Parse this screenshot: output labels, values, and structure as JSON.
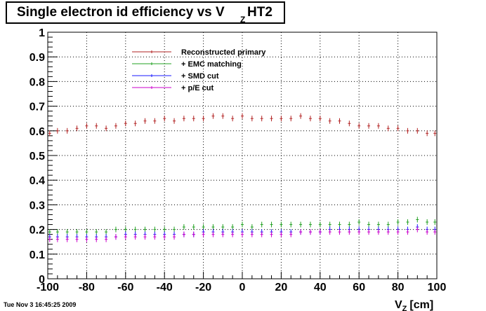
{
  "chart_data": {
    "type": "scatter",
    "title_main": "Single electron id efficiency vs V",
    "title_sub": "Z",
    "title_end": "HT2",
    "xlabel_main": "V",
    "xlabel_sub": "Z",
    "xlabel_end": "[cm]",
    "xlim": [
      -100,
      100
    ],
    "ylim": [
      0,
      1
    ],
    "x_ticks": [
      -100,
      -80,
      -60,
      -40,
      -20,
      0,
      20,
      40,
      60,
      80,
      100
    ],
    "y_ticks": [
      0,
      0.1,
      0.2,
      0.3,
      0.4,
      0.5,
      0.6,
      0.7,
      0.8,
      0.9,
      1
    ],
    "grid": true,
    "error_bars": true,
    "legend_position": "top-center",
    "series": [
      {
        "name": "Reconstructed primary",
        "color": "#b22222",
        "x": [
          -99,
          -95,
          -90,
          -85,
          -80,
          -75,
          -70,
          -65,
          -60,
          -55,
          -50,
          -45,
          -40,
          -35,
          -30,
          -25,
          -20,
          -15,
          -10,
          -5,
          0,
          5,
          10,
          15,
          20,
          25,
          30,
          35,
          40,
          45,
          50,
          55,
          60,
          65,
          70,
          75,
          80,
          85,
          90,
          95,
          99
        ],
        "y": [
          0.59,
          0.6,
          0.6,
          0.61,
          0.62,
          0.62,
          0.61,
          0.62,
          0.63,
          0.63,
          0.64,
          0.64,
          0.65,
          0.64,
          0.65,
          0.65,
          0.65,
          0.66,
          0.66,
          0.65,
          0.66,
          0.65,
          0.65,
          0.65,
          0.65,
          0.65,
          0.66,
          0.65,
          0.65,
          0.64,
          0.64,
          0.63,
          0.62,
          0.62,
          0.62,
          0.61,
          0.61,
          0.6,
          0.6,
          0.59,
          0.59
        ]
      },
      {
        "name": "+ EMC matching",
        "color": "#22a022",
        "x": [
          -99,
          -95,
          -90,
          -85,
          -80,
          -75,
          -70,
          -65,
          -60,
          -55,
          -50,
          -45,
          -40,
          -35,
          -30,
          -25,
          -20,
          -15,
          -10,
          -5,
          0,
          5,
          10,
          15,
          20,
          25,
          30,
          35,
          40,
          45,
          50,
          55,
          60,
          65,
          70,
          75,
          80,
          85,
          90,
          95,
          99
        ],
        "y": [
          0.19,
          0.19,
          0.19,
          0.19,
          0.19,
          0.19,
          0.19,
          0.2,
          0.2,
          0.2,
          0.2,
          0.2,
          0.2,
          0.2,
          0.21,
          0.21,
          0.21,
          0.21,
          0.21,
          0.21,
          0.22,
          0.21,
          0.22,
          0.22,
          0.22,
          0.22,
          0.22,
          0.22,
          0.22,
          0.22,
          0.22,
          0.22,
          0.23,
          0.22,
          0.22,
          0.22,
          0.23,
          0.23,
          0.24,
          0.23,
          0.23
        ]
      },
      {
        "name": "+ SMD cut",
        "color": "#1a1aff",
        "x": [
          -99,
          -95,
          -90,
          -85,
          -80,
          -75,
          -70,
          -65,
          -60,
          -55,
          -50,
          -45,
          -40,
          -35,
          -30,
          -25,
          -20,
          -15,
          -10,
          -5,
          0,
          5,
          10,
          15,
          20,
          25,
          30,
          35,
          40,
          45,
          50,
          55,
          60,
          65,
          70,
          75,
          80,
          85,
          90,
          95,
          99
        ],
        "y": [
          0.17,
          0.17,
          0.17,
          0.17,
          0.17,
          0.17,
          0.17,
          0.17,
          0.18,
          0.18,
          0.18,
          0.18,
          0.18,
          0.18,
          0.18,
          0.18,
          0.19,
          0.19,
          0.19,
          0.19,
          0.19,
          0.19,
          0.19,
          0.19,
          0.19,
          0.19,
          0.19,
          0.19,
          0.19,
          0.2,
          0.2,
          0.2,
          0.2,
          0.2,
          0.2,
          0.2,
          0.2,
          0.2,
          0.21,
          0.2,
          0.2
        ]
      },
      {
        "name": "+ p/E cut",
        "color": "#cc00cc",
        "x": [
          -99,
          -95,
          -90,
          -85,
          -80,
          -75,
          -70,
          -65,
          -60,
          -55,
          -50,
          -45,
          -40,
          -35,
          -30,
          -25,
          -20,
          -15,
          -10,
          -5,
          0,
          5,
          10,
          15,
          20,
          25,
          30,
          35,
          40,
          45,
          50,
          55,
          60,
          65,
          70,
          75,
          80,
          85,
          90,
          95,
          99
        ],
        "y": [
          0.16,
          0.16,
          0.16,
          0.16,
          0.16,
          0.16,
          0.16,
          0.17,
          0.17,
          0.17,
          0.17,
          0.17,
          0.17,
          0.17,
          0.18,
          0.18,
          0.18,
          0.18,
          0.18,
          0.18,
          0.18,
          0.18,
          0.18,
          0.18,
          0.18,
          0.18,
          0.19,
          0.19,
          0.19,
          0.19,
          0.19,
          0.19,
          0.19,
          0.19,
          0.19,
          0.19,
          0.19,
          0.19,
          0.2,
          0.19,
          0.19
        ]
      }
    ]
  },
  "timestamp": "Tue Nov  3 16:45:25 2009"
}
